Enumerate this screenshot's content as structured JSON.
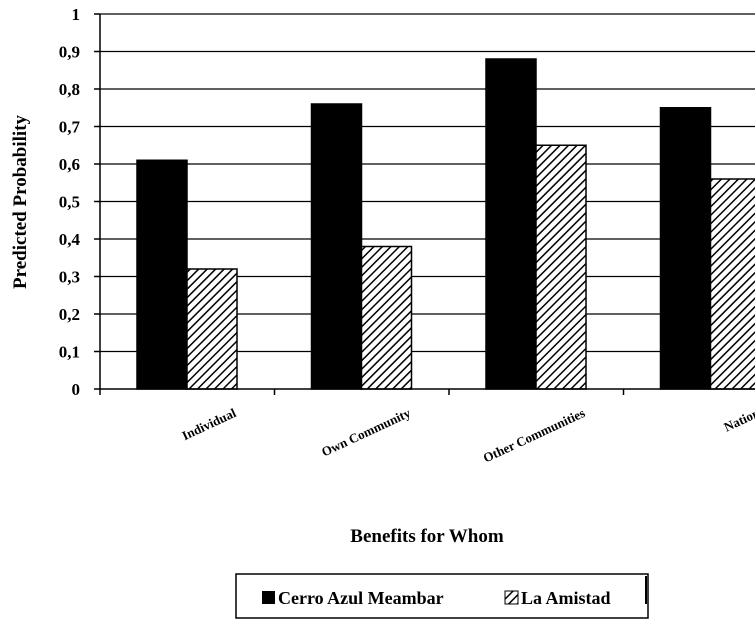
{
  "chart_data": {
    "type": "bar",
    "title": "",
    "xlabel": "Benefits for Whom",
    "ylabel": "Predicted Probability",
    "categories": [
      "Individual",
      "Own Community",
      "Other Communities",
      "Nation"
    ],
    "series": [
      {
        "name": "Cerro Azul Meambar",
        "values": [
          0.61,
          0.76,
          0.88,
          0.75
        ],
        "fill": "#000000",
        "pattern": "solid"
      },
      {
        "name": "La Amistad",
        "values": [
          0.32,
          0.38,
          0.65,
          0.56
        ],
        "fill": "#000000",
        "pattern": "diagonal-hatch"
      }
    ],
    "ylim": [
      0,
      1
    ],
    "yticks": [
      0,
      0.1,
      0.2,
      0.3,
      0.4,
      0.5,
      0.6,
      0.7,
      0.8,
      0.9,
      1
    ],
    "ytick_labels": [
      "0",
      "0,1",
      "0,2",
      "0,3",
      "0,4",
      "0,5",
      "0,6",
      "0,7",
      "0,8",
      "0,9",
      "1"
    ],
    "grid": "horizontal",
    "legend_position": "bottom"
  }
}
